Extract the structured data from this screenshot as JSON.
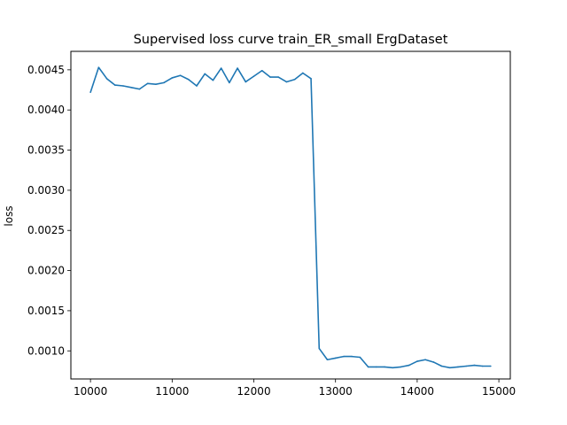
{
  "chart_data": {
    "type": "line",
    "title": "Supervised loss curve train_ER_small ErgDataset",
    "xlabel": "",
    "ylabel": "loss",
    "xlim": [
      9760,
      15140
    ],
    "ylim": [
      0.00065,
      0.00473
    ],
    "xticks": [
      10000,
      11000,
      12000,
      13000,
      14000,
      15000
    ],
    "xtick_labels": [
      "10000",
      "11000",
      "12000",
      "13000",
      "14000",
      "15000"
    ],
    "yticks": [
      0.001,
      0.0015,
      0.002,
      0.0025,
      0.003,
      0.0035,
      0.004,
      0.0045
    ],
    "ytick_labels": [
      "0.0010",
      "0.0015",
      "0.0020",
      "0.0025",
      "0.0030",
      "0.0035",
      "0.0040",
      "0.0045"
    ],
    "grid": false,
    "legend": "none",
    "color": "#1f77b4",
    "series": [
      {
        "x": [
          10000,
          10100,
          10200,
          10300,
          10400,
          10500,
          10600,
          10700,
          10800,
          10900,
          11000,
          11100,
          11200,
          11300,
          11400,
          11500,
          11600,
          11700,
          11800,
          11900,
          12000,
          12100,
          12200,
          12300,
          12400,
          12500,
          12600,
          12700,
          12800,
          12900,
          13000,
          13100,
          13200,
          13300,
          13400,
          13500,
          13600,
          13700,
          13800,
          13900,
          14000,
          14100,
          14200,
          14300,
          14400,
          14500,
          14600,
          14700,
          14800,
          14900
        ],
        "values": [
          0.00422,
          0.00453,
          0.00439,
          0.00431,
          0.0043,
          0.00428,
          0.00426,
          0.00433,
          0.00432,
          0.00434,
          0.0044,
          0.00443,
          0.00438,
          0.0043,
          0.00445,
          0.00437,
          0.00452,
          0.00434,
          0.00452,
          0.00435,
          0.00442,
          0.00449,
          0.00441,
          0.00441,
          0.00435,
          0.00438,
          0.00446,
          0.00439,
          0.00103,
          0.00089,
          0.00091,
          0.00093,
          0.00093,
          0.00092,
          0.0008,
          0.0008,
          0.0008,
          0.00079,
          0.0008,
          0.00082,
          0.00087,
          0.00089,
          0.00086,
          0.00081,
          0.00079,
          0.0008,
          0.00081,
          0.00082,
          0.00081,
          0.00081
        ]
      }
    ]
  }
}
